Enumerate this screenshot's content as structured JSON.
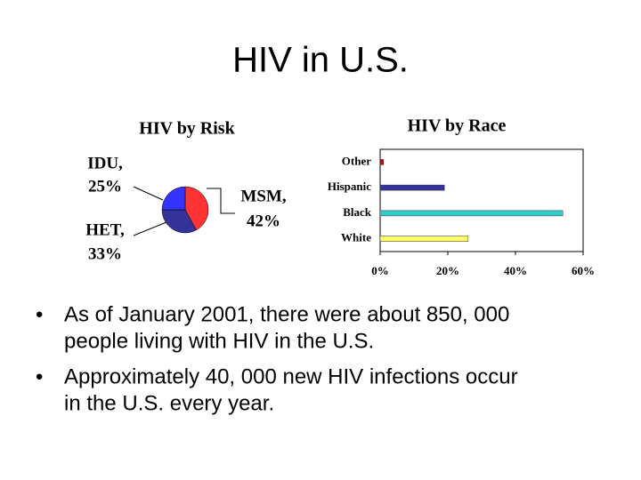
{
  "title": "HIV in U.S.",
  "chart_data": [
    {
      "type": "pie",
      "title": "HIV by Risk",
      "categories": [
        "MSM,",
        "HET,",
        "IDU,"
      ],
      "values": [
        42,
        33,
        25
      ],
      "value_labels": [
        "42%",
        "33%",
        "25%"
      ],
      "colors": [
        "#ff3333",
        "#333399",
        "#3333ff"
      ]
    },
    {
      "type": "hbar",
      "title": "HIV by Race",
      "categories": [
        "Other",
        "Hispanic",
        "Black",
        "White"
      ],
      "values": [
        1,
        19,
        54,
        26
      ],
      "colors": [
        "#cc0000",
        "#333399",
        "#33cccc",
        "#ffff66"
      ],
      "xlim": [
        0,
        60
      ],
      "xticks": [
        {
          "value": 0,
          "label": "0%"
        },
        {
          "value": 20,
          "label": "20%"
        },
        {
          "value": 40,
          "label": "40%"
        },
        {
          "value": 60,
          "label": "60%"
        }
      ]
    }
  ],
  "bullets": [
    [
      "As of January 2001, there were about 850, 000",
      "people living with HIV in the U.S."
    ],
    [
      "Approximately 40, 000 new HIV infections occur",
      "in the U.S. every year."
    ]
  ]
}
